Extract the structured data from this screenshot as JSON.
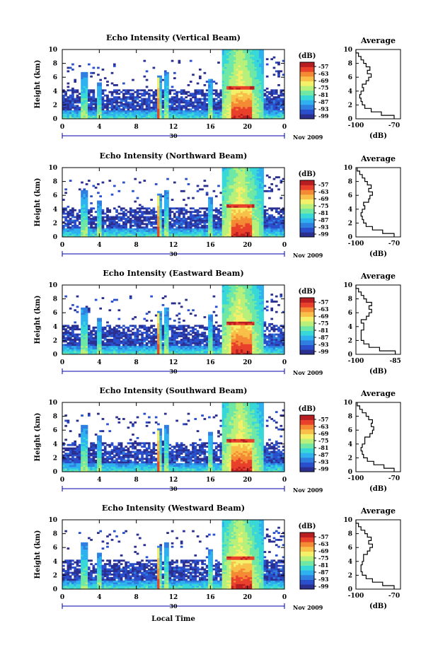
{
  "chart_data": [
    {
      "type": "heatmap",
      "title": "Echo Intensity (Vertical Beam)",
      "ylabel": "Height (km)",
      "yticks": [
        "0",
        "2",
        "4",
        "6",
        "8",
        "10"
      ],
      "xticks": [
        "0",
        "4",
        "8",
        "12",
        "16",
        "20",
        "0"
      ],
      "date_label": "30",
      "date_suffix": "Nov 2009",
      "ylim": [
        0,
        10
      ],
      "xlim": [
        0,
        24
      ],
      "colorbar": {
        "label": "(dB)",
        "ticks": [
          "-57",
          "-63",
          "-69",
          "-75",
          "-81",
          "-87",
          "-93",
          "-99"
        ]
      },
      "avg": {
        "title": "Average",
        "xlabel": "(dB)",
        "xticks": [
          "-100",
          "-70"
        ],
        "xlim": [
          -100,
          -65
        ],
        "height": [
          0,
          0.5,
          1,
          1.5,
          2,
          2.5,
          3,
          3.5,
          4,
          4.5,
          5,
          5.5,
          6,
          6.5,
          7,
          7.5,
          8,
          8.5,
          9,
          9.5
        ],
        "values": [
          -70,
          -80,
          -88,
          -93,
          -95,
          -96,
          -97,
          -96,
          -94,
          -95,
          -92,
          -90,
          -88,
          -91,
          -89,
          -92,
          -94,
          -96,
          -98,
          -100
        ]
      }
    },
    {
      "type": "heatmap",
      "title": "Echo Intensity (Northward Beam)",
      "ylabel": "Height (km)",
      "yticks": [
        "0",
        "2",
        "4",
        "6",
        "8",
        "10"
      ],
      "xticks": [
        "0",
        "4",
        "8",
        "12",
        "16",
        "20",
        "0"
      ],
      "date_label": "30",
      "date_suffix": "Nov 2009",
      "ylim": [
        0,
        10
      ],
      "xlim": [
        0,
        24
      ],
      "colorbar": {
        "label": "(dB)",
        "ticks": [
          "-57",
          "-63",
          "-69",
          "-75",
          "-81",
          "-87",
          "-93",
          "-99"
        ]
      },
      "avg": {
        "title": "Average",
        "xlabel": "(dB)",
        "xticks": [
          "-100",
          "-70"
        ],
        "xlim": [
          -100,
          -65
        ],
        "height": [
          0,
          0.5,
          1,
          1.5,
          2,
          2.5,
          3,
          3.5,
          4,
          4.5,
          5,
          5.5,
          6,
          6.5,
          7,
          7.5,
          8,
          8.5,
          9,
          9.5
        ],
        "values": [
          -70,
          -79,
          -87,
          -92,
          -94,
          -95,
          -96,
          -95,
          -93,
          -94,
          -90,
          -89,
          -87,
          -90,
          -88,
          -91,
          -93,
          -95,
          -97,
          -99
        ]
      }
    },
    {
      "type": "heatmap",
      "title": "Echo Intensity (Eastward Beam)",
      "ylabel": "Height (km)",
      "yticks": [
        "0",
        "2",
        "4",
        "6",
        "8",
        "10"
      ],
      "xticks": [
        "0",
        "4",
        "8",
        "12",
        "16",
        "20",
        "0"
      ],
      "date_label": "30",
      "date_suffix": "Nov 2009",
      "ylim": [
        0,
        10
      ],
      "xlim": [
        0,
        24
      ],
      "colorbar": {
        "label": "(dB)",
        "ticks": [
          "-57",
          "-63",
          "-69",
          "-75",
          "-81",
          "-87",
          "-93",
          "-99"
        ]
      },
      "avg": {
        "title": "Average",
        "xlabel": "(dB)",
        "xticks": [
          "-100",
          "-85"
        ],
        "xlim": [
          -100,
          -83
        ],
        "height": [
          0,
          0.5,
          1,
          1.5,
          2,
          2.5,
          3,
          3.5,
          4,
          4.5,
          5,
          5.5,
          6,
          6.5,
          7,
          7.5,
          8,
          8.5,
          9,
          9.5
        ],
        "values": [
          -85,
          -91,
          -95,
          -97,
          -98,
          -98,
          -98,
          -97,
          -97,
          -98,
          -96,
          -95,
          -94,
          -95,
          -94,
          -96,
          -97,
          -98,
          -99,
          -100
        ]
      }
    },
    {
      "type": "heatmap",
      "title": "Echo Intensity (Southward Beam)",
      "ylabel": "Height (km)",
      "yticks": [
        "0",
        "2",
        "4",
        "6",
        "8",
        "10"
      ],
      "xticks": [
        "0",
        "4",
        "8",
        "12",
        "16",
        "20",
        "0"
      ],
      "date_label": "30",
      "date_suffix": "Nov 2009",
      "ylim": [
        0,
        10
      ],
      "xlim": [
        0,
        24
      ],
      "colorbar": {
        "label": "(dB)",
        "ticks": [
          "-57",
          "-63",
          "-69",
          "-75",
          "-81",
          "-87",
          "-93",
          "-99"
        ]
      },
      "avg": {
        "title": "Average",
        "xlabel": "(dB)",
        "xticks": [
          "-100",
          "-70"
        ],
        "xlim": [
          -100,
          -65
        ],
        "height": [
          0,
          0.5,
          1,
          1.5,
          2,
          2.5,
          3,
          3.5,
          4,
          4.5,
          5,
          5.5,
          6,
          6.5,
          7,
          7.5,
          8,
          8.5,
          9,
          9.5
        ],
        "values": [
          -70,
          -78,
          -86,
          -91,
          -94,
          -95,
          -96,
          -95,
          -93,
          -93,
          -89,
          -87,
          -86,
          -88,
          -87,
          -90,
          -92,
          -95,
          -97,
          -99
        ]
      }
    },
    {
      "type": "heatmap",
      "title": "Echo Intensity (Westward Beam)",
      "ylabel": "Height (km)",
      "yticks": [
        "0",
        "2",
        "4",
        "6",
        "8",
        "10"
      ],
      "xticks": [
        "0",
        "4",
        "8",
        "12",
        "16",
        "20",
        "0"
      ],
      "date_label": "30",
      "date_suffix": "Nov 2009",
      "ylim": [
        0,
        10
      ],
      "xlim": [
        0,
        24
      ],
      "colorbar": {
        "label": "(dB)",
        "ticks": [
          "-57",
          "-63",
          "-69",
          "-75",
          "-81",
          "-87",
          "-93",
          "-99"
        ]
      },
      "avg": {
        "title": "Average",
        "xlabel": "(dB)",
        "xticks": [
          "-100",
          "-70"
        ],
        "xlim": [
          -100,
          -65
        ],
        "height": [
          0,
          0.5,
          1,
          1.5,
          2,
          2.5,
          3,
          3.5,
          4,
          4.5,
          5,
          5.5,
          6,
          6.5,
          7,
          7.5,
          8,
          8.5,
          9,
          9.5
        ],
        "values": [
          -70,
          -79,
          -87,
          -92,
          -95,
          -96,
          -96,
          -95,
          -94,
          -94,
          -91,
          -89,
          -87,
          -90,
          -88,
          -91,
          -93,
          -96,
          -98,
          -100
        ]
      }
    }
  ],
  "xlabel": "Local Time",
  "colors": {
    "scale": [
      "#2b2f8f",
      "#2a4fcc",
      "#2f7fe0",
      "#2fb1f0",
      "#38d8d8",
      "#6fe8a6",
      "#b7f07a",
      "#f4f06a",
      "#f8c048",
      "#f58a35",
      "#e8402a",
      "#b81d22"
    ]
  }
}
